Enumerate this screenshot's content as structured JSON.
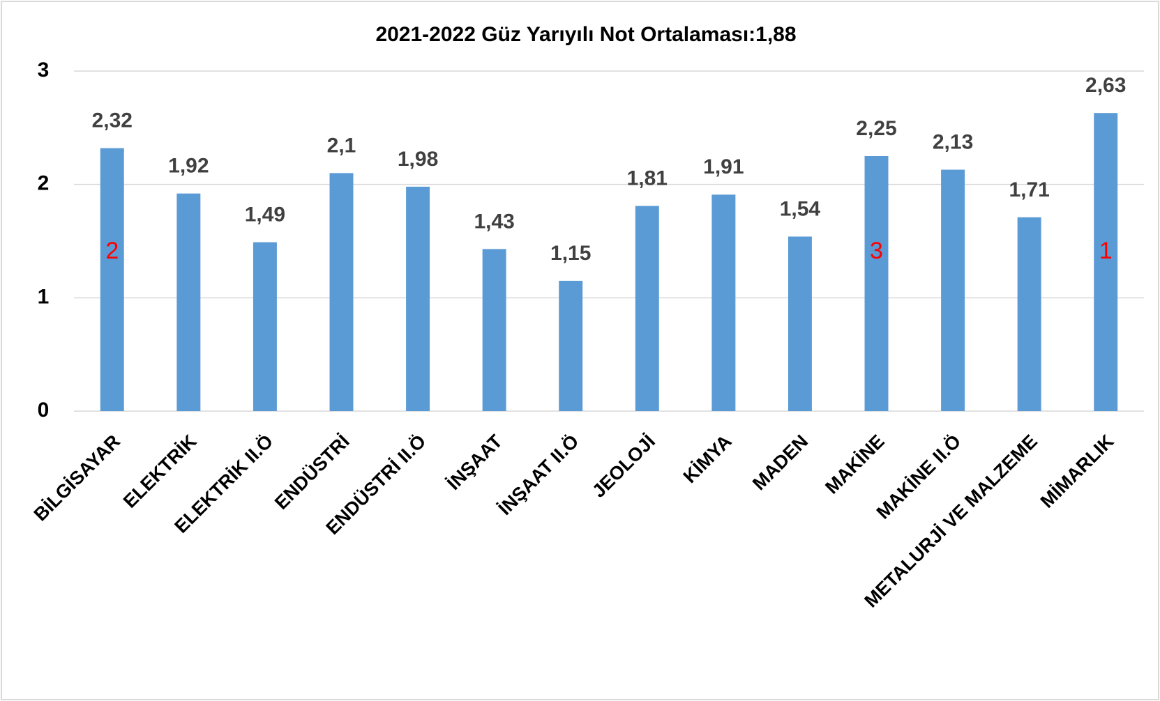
{
  "chart_data": {
    "type": "bar",
    "title": "2021-2022 Güz Yarıyılı Not Ortalaması:1,88",
    "categories": [
      "BİLGİSAYAR",
      "ELEKTRİK",
      "ELEKTRİK II.Ö",
      "ENDÜSTRİ",
      "ENDÜSTRİ II.Ö",
      "İNŞAAT",
      "İNŞAAT II.Ö",
      "JEOLOJİ",
      "KİMYA",
      "MADEN",
      "MAKİNE",
      "MAKİNE II.Ö",
      "METALURJİ VE MALZEME",
      "MİMARLIK"
    ],
    "values": [
      2.32,
      1.92,
      1.49,
      2.1,
      1.98,
      1.43,
      1.15,
      1.81,
      1.91,
      1.54,
      2.25,
      2.13,
      1.71,
      2.63
    ],
    "value_labels": [
      "2,32",
      "1,92",
      "1,49",
      "2,1",
      "1,98",
      "1,43",
      "1,15",
      "1,81",
      "1,91",
      "1,54",
      "2,25",
      "2,13",
      "1,71",
      "2,63"
    ],
    "ranks": [
      2,
      null,
      null,
      null,
      null,
      null,
      null,
      null,
      null,
      null,
      3,
      null,
      null,
      1
    ],
    "color": "#5b9bd5",
    "rank_color": "#ff0000",
    "ylim": [
      0,
      3
    ],
    "yticks": [
      0,
      1,
      2,
      3
    ],
    "grid": true
  }
}
